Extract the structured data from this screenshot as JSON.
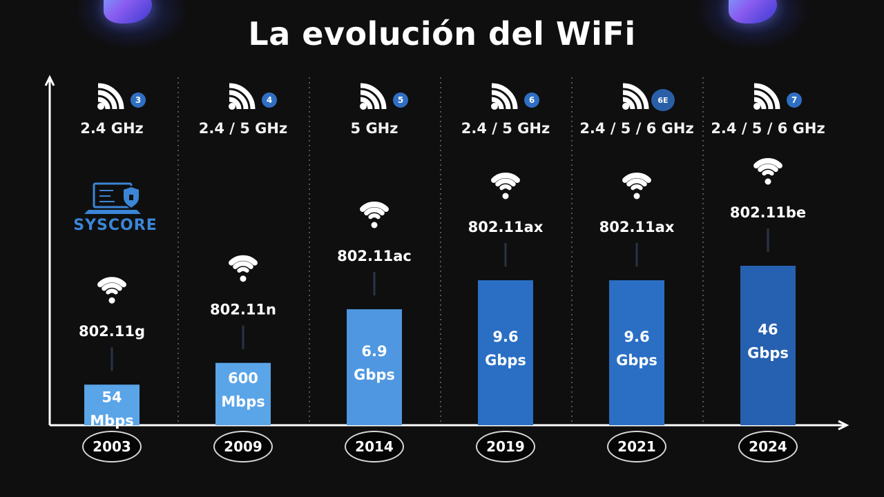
{
  "title": "La evolución del WiFi",
  "brand": {
    "logo_text": "SYSCORE"
  },
  "colors": {
    "background": "#0f0f10",
    "bar_light": "#5aa4e8",
    "bar_mid": "#4f97e0",
    "bar_dark": "#2a6fc4",
    "bar_darkest": "#2660b0",
    "badge": "#2f6fc3",
    "logo": "#3b86d6"
  },
  "chart_data": {
    "type": "bar",
    "title": "La evolución del WiFi",
    "categories": [
      "2003",
      "2009",
      "2014",
      "2019",
      "2021",
      "2024"
    ],
    "generations": [
      "3",
      "4",
      "5",
      "6",
      "6E",
      "7"
    ],
    "frequencies": [
      "2.4 GHz",
      "2.4 / 5 GHz",
      "5 GHz",
      "2.4 / 5 GHz",
      "2.4 / 5 / 6 GHz",
      "2.4 / 5 / 6 GHz"
    ],
    "standards": [
      "802.11g",
      "802.11n",
      "802.11ac",
      "802.11ax",
      "802.11ax",
      "802.11be"
    ],
    "value_labels": [
      [
        "54",
        "Mbps"
      ],
      [
        "600",
        "Mbps"
      ],
      [
        "6.9",
        "Gbps"
      ],
      [
        "9.6",
        "Gbps"
      ],
      [
        "9.6",
        "Gbps"
      ],
      [
        "46",
        "Gbps"
      ]
    ],
    "values_mbps": [
      54,
      600,
      6900,
      9600,
      9600,
      46000
    ],
    "bar_heights_relative": [
      0.28,
      0.43,
      0.8,
      1.0,
      1.0,
      1.1
    ],
    "icons": [
      "wifi-icon",
      "wifi-signal-icon"
    ]
  }
}
